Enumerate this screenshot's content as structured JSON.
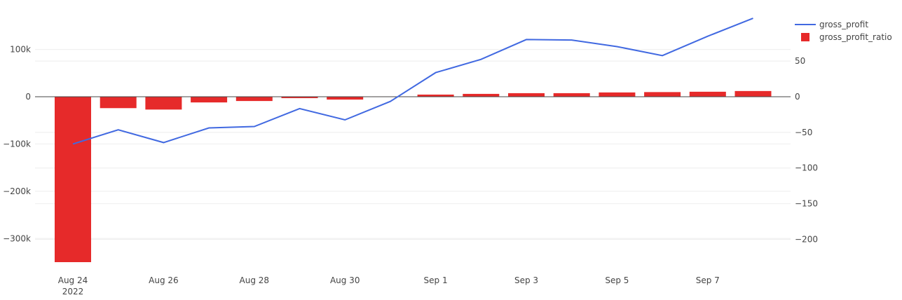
{
  "chart_data": {
    "type": "bar+line",
    "x": [
      "2022-08-24",
      "2022-08-25",
      "2022-08-26",
      "2022-08-27",
      "2022-08-28",
      "2022-08-29",
      "2022-08-30",
      "2022-08-31",
      "2022-09-01",
      "2022-09-02",
      "2022-09-03",
      "2022-09-04",
      "2022-09-05",
      "2022-09-06",
      "2022-09-07",
      "2022-09-08"
    ],
    "series": [
      {
        "name": "gross_profit",
        "kind": "line",
        "axis": "y_left",
        "color": "#4169e1",
        "values": [
          -100000,
          -70000,
          -97000,
          -66000,
          -63000,
          -25000,
          -49000,
          -10000,
          51000,
          79000,
          121000,
          120000,
          106000,
          87000,
          128000,
          166000
        ]
      },
      {
        "name": "gross_profit_ratio",
        "kind": "bar",
        "axis": "y_right",
        "color": "#e62a2a",
        "values": [
          -232,
          -16,
          -18,
          -8,
          -6,
          -2,
          -4,
          0.5,
          3,
          4,
          5,
          5,
          6,
          6.5,
          7,
          8
        ]
      }
    ],
    "y_left": {
      "range": [
        -350000,
        175000
      ],
      "ticks": [
        100000,
        0,
        -100000,
        -200000,
        -300000
      ],
      "tick_labels": [
        "100k",
        "0",
        "−100k",
        "−200k",
        "−300k"
      ]
    },
    "y_right": {
      "range": [
        -232,
        116
      ],
      "ticks": [
        50,
        0,
        -50,
        -100,
        -150,
        -200
      ],
      "tick_labels": [
        "50",
        "0",
        "−50",
        "−100",
        "−150",
        "−200"
      ]
    },
    "x_ticks": [
      {
        "date": "2022-08-24",
        "label": "Aug 24",
        "sublabel": "2022"
      },
      {
        "date": "2022-08-26",
        "label": "Aug 26"
      },
      {
        "date": "2022-08-28",
        "label": "Aug 28"
      },
      {
        "date": "2022-08-30",
        "label": "Aug 30"
      },
      {
        "date": "2022-09-01",
        "label": "Sep 1"
      },
      {
        "date": "2022-09-03",
        "label": "Sep 3"
      },
      {
        "date": "2022-09-05",
        "label": "Sep 5"
      },
      {
        "date": "2022-09-07",
        "label": "Sep 7"
      }
    ],
    "legend": {
      "position": "top-right",
      "items": [
        {
          "name": "gross_profit",
          "symbol": "line",
          "color": "#4169e1"
        },
        {
          "name": "gross_profit_ratio",
          "symbol": "square",
          "color": "#e62a2a"
        }
      ]
    },
    "grid": true
  }
}
